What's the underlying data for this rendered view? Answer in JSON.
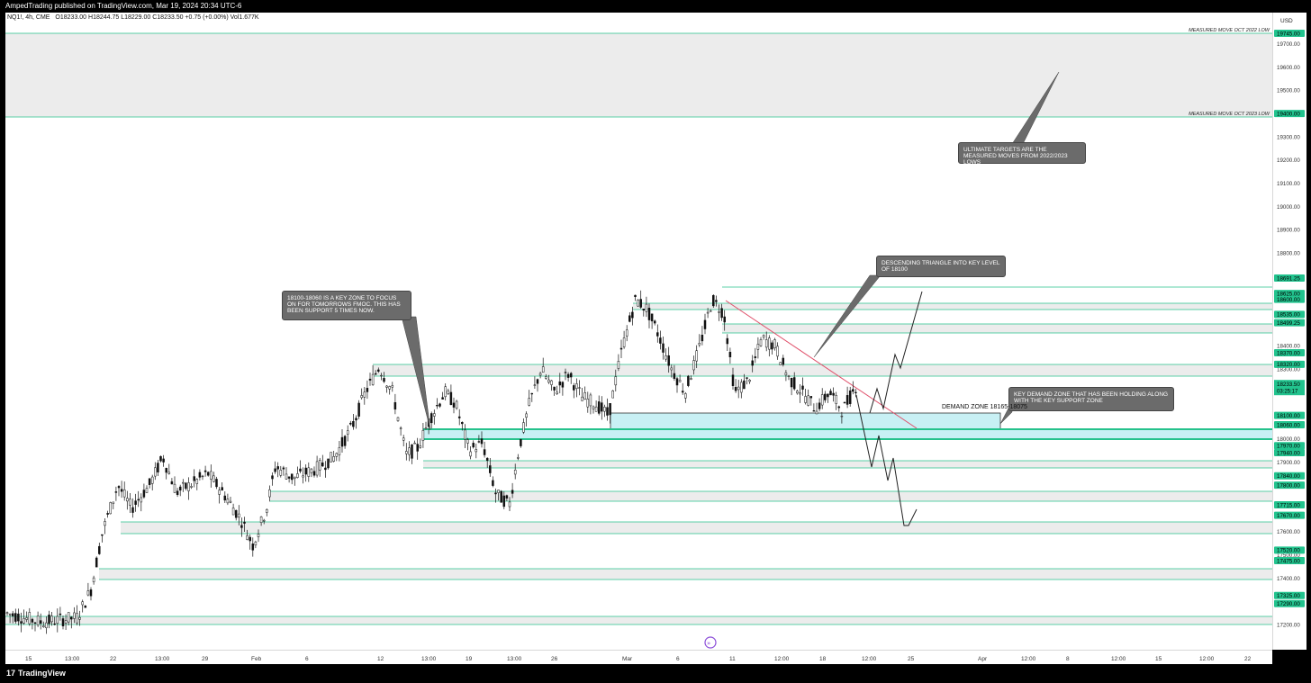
{
  "header": {
    "published_line": "AmpedTrading published on TradingView.com, Mar 19, 2024 20:34 UTC-6",
    "symbol": "NQ1!, 4h, CME",
    "ohlc": "O18233.00  H18244.75  L18229.00  C18233.50  +0.75 (+0.00%)  Vol1.677K"
  },
  "price_scale": {
    "currency": "USD",
    "ticks": [
      "19700.00",
      "19600.00",
      "19500.00",
      "19300.00",
      "19200.00",
      "19100.00",
      "19000.00",
      "18900.00",
      "18800.00",
      "18400.00",
      "18300.00",
      "18000.00",
      "17900.00",
      "17600.00",
      "17500.00",
      "17400.00",
      "17200.00"
    ],
    "level_labels": [
      "19745.00",
      "19400.00",
      "18691.25",
      "18625.00",
      "18600.00",
      "18535.00",
      "18499.25",
      "18370.00",
      "18320.00",
      "18100.00",
      "18060.00",
      "17970.00",
      "17940.00",
      "17840.00",
      "17800.00",
      "17715.00",
      "17670.00",
      "17520.00",
      "17475.00",
      "17325.00",
      "17290.00"
    ],
    "last_price": "18233.50",
    "countdown": "03:25:17",
    "level_color": "#22c38e"
  },
  "time_scale": {
    "ticks": [
      "15",
      "13:00",
      "22",
      "13:00",
      "29",
      "Feb",
      "6",
      "12",
      "13:00",
      "19",
      "13:00",
      "26",
      "Mar",
      "6",
      "11",
      "12:00",
      "18",
      "12:00",
      "25",
      "Apr",
      "12:00",
      "8",
      "12:00",
      "15",
      "12:00",
      "22"
    ]
  },
  "annotations": {
    "measured_2022": "MEASURED MOVE OCT 2022 LOW",
    "measured_2023": "MEASURED MOVE OCT 2023 LOW",
    "note_targets": "ULTIMATE TARGETS ARE THE MEASURED MOVES FROM 2022/2023 LOWS",
    "note_triangle": "DESCENDING TRIANGLE INTO KEY LEVEL OF 18100",
    "note_key_zone": "18100-18060 IS A KEY ZONE TO FOCUS ON FOR TOMORROWS FMOC. THIS HAS BEEN SUPPORT 5 TIMES NOW.",
    "note_demand": "KEY DEMAND ZONE THAT HAS BEEN HOLDING ALONG WITH THE KEY SUPPORT ZONE",
    "demand_label": "DEMAND ZONE 18165-18075"
  },
  "footer": {
    "brand": "TradingView",
    "logo_icon": "tradingview-logo-icon"
  },
  "colors": {
    "level_line": "#26c28c",
    "zone_fill": "#ececec",
    "demand_fill": "#c8f0f4",
    "trend_line": "#e0506a"
  }
}
